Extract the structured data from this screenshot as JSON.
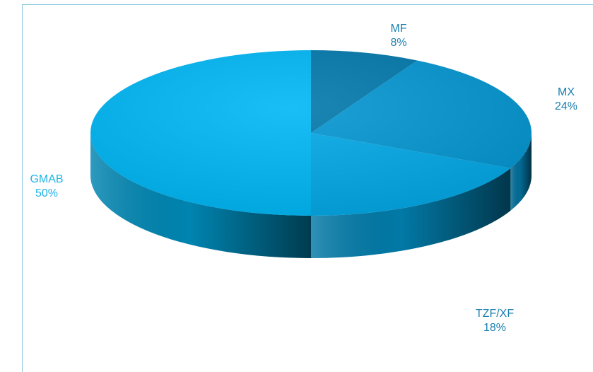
{
  "chart_data": {
    "type": "pie",
    "style": "3d",
    "title": "",
    "start_angle_deg": 0,
    "direction": "clockwise",
    "slices": [
      {
        "label": "MF",
        "value": 8,
        "display": "8%",
        "color": "#0278ab",
        "label_color": "#1a7fb0"
      },
      {
        "label": "MX",
        "value": 24,
        "display": "24%",
        "color": "#0496d1",
        "label_color": "#1a7fb0"
      },
      {
        "label": "TZF/XF",
        "value": 18,
        "display": "18%",
        "color": "#03a8e6",
        "label_color": "#1a7fb0"
      },
      {
        "label": "GMAB",
        "value": 50,
        "display": "50%",
        "color": "#00b7f5",
        "label_color": "#1fb3e8"
      }
    ]
  }
}
